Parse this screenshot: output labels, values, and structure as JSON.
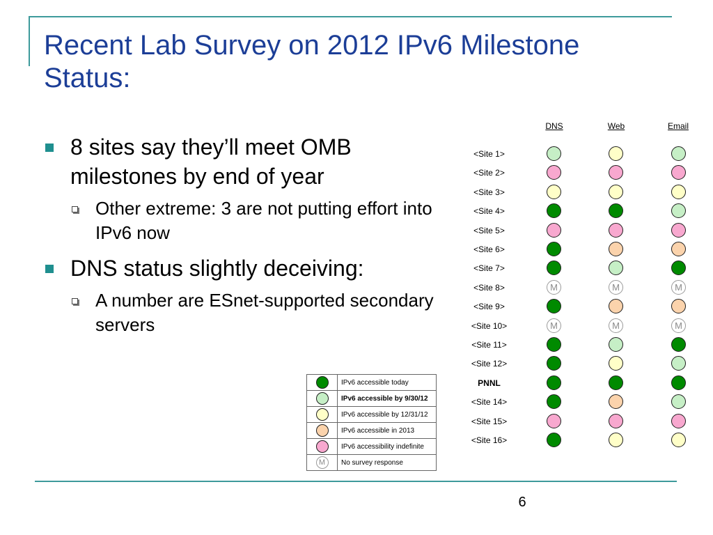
{
  "slide": {
    "title": "Recent Lab Survey on 2012 IPv6 Milestone Status:",
    "page_number": "6"
  },
  "bullets": [
    {
      "text": "8 sites say they’ll meet OMB milestones by end of year",
      "sub": "Other extreme:  3 are not putting effort into IPv6 now"
    },
    {
      "text": "DNS status slightly deceiving:",
      "sub": "A number are ESnet-supported secondary servers"
    }
  ],
  "status_colors": {
    "today": "#008a00",
    "by_9_30_12": "#c6efc6",
    "by_12_31_12": "#ffffc8",
    "in_2013": "#fbd3ac",
    "indefinite": "#f8a8cf",
    "no_response": "#ffffff"
  },
  "grid": {
    "columns": [
      "DNS",
      "Web",
      "Email"
    ],
    "rows": [
      {
        "site": "<Site 1>",
        "bold": false,
        "status": [
          "by_9_30_12",
          "by_12_31_12",
          "by_9_30_12"
        ]
      },
      {
        "site": "<Site 2>",
        "bold": false,
        "status": [
          "indefinite",
          "indefinite",
          "indefinite"
        ]
      },
      {
        "site": "<Site 3>",
        "bold": false,
        "status": [
          "by_12_31_12",
          "by_12_31_12",
          "by_12_31_12"
        ]
      },
      {
        "site": "<Site 4>",
        "bold": false,
        "status": [
          "today",
          "today",
          "by_9_30_12"
        ]
      },
      {
        "site": "<Site 5>",
        "bold": false,
        "status": [
          "indefinite",
          "indefinite",
          "indefinite"
        ]
      },
      {
        "site": "<Site 6>",
        "bold": false,
        "status": [
          "today",
          "in_2013",
          "in_2013"
        ]
      },
      {
        "site": "<Site 7>",
        "bold": false,
        "status": [
          "today",
          "by_9_30_12",
          "today"
        ]
      },
      {
        "site": "<Site 8>",
        "bold": false,
        "status": [
          "no_response",
          "no_response",
          "no_response"
        ]
      },
      {
        "site": "<Site 9>",
        "bold": false,
        "status": [
          "today",
          "in_2013",
          "in_2013"
        ]
      },
      {
        "site": "<Site 10>",
        "bold": false,
        "status": [
          "no_response",
          "no_response",
          "no_response"
        ]
      },
      {
        "site": "<Site 11>",
        "bold": false,
        "status": [
          "today",
          "by_9_30_12",
          "today"
        ]
      },
      {
        "site": "<Site 12>",
        "bold": false,
        "status": [
          "today",
          "by_12_31_12",
          "by_9_30_12"
        ]
      },
      {
        "site": "PNNL",
        "bold": true,
        "status": [
          "today",
          "today",
          "today"
        ]
      },
      {
        "site": "<Site 14>",
        "bold": false,
        "status": [
          "today",
          "in_2013",
          "by_9_30_12"
        ]
      },
      {
        "site": "<Site 15>",
        "bold": false,
        "status": [
          "indefinite",
          "indefinite",
          "indefinite"
        ]
      },
      {
        "site": "<Site 16>",
        "bold": false,
        "status": [
          "today",
          "by_12_31_12",
          "by_12_31_12"
        ]
      }
    ]
  },
  "legend": {
    "m_glyph": "M",
    "items": [
      {
        "key": "today",
        "label": "IPv6 accessible today",
        "bold": false
      },
      {
        "key": "by_9_30_12",
        "label": "IPv6 accessible by 9/30/12",
        "bold": true
      },
      {
        "key": "by_12_31_12",
        "label": "IPv6 accessible by 12/31/12",
        "bold": false
      },
      {
        "key": "in_2013",
        "label": "IPv6 accessible in 2013",
        "bold": false
      },
      {
        "key": "indefinite",
        "label": "IPv6 accessibility indefinite",
        "bold": false
      },
      {
        "key": "no_response",
        "label": "No survey response",
        "bold": false
      }
    ]
  }
}
